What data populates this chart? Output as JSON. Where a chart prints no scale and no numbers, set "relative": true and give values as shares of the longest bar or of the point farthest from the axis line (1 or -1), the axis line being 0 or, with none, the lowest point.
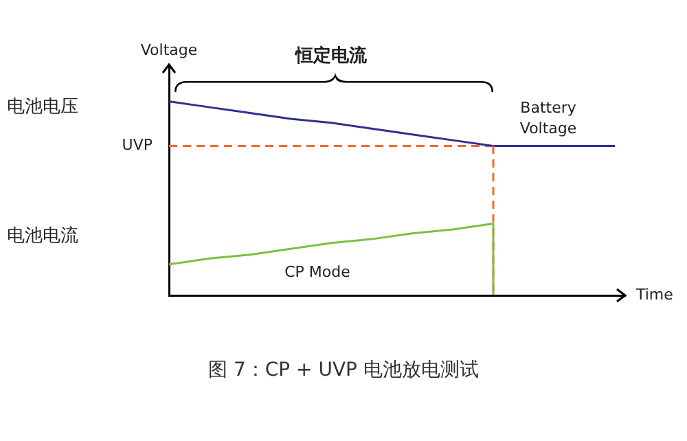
{
  "chart_data": {
    "type": "line",
    "title": "图 7：CP + UVP 电池放电测试",
    "xlabel": "Time",
    "ylabel": "Voltage",
    "relative": true,
    "categories": [
      null,
      null,
      null,
      null,
      null,
      null,
      null,
      null,
      null,
      null,
      null,
      null
    ],
    "series": [
      {
        "name": "Battery Voltage",
        "color": "#2e3192",
        "values": [
          1,
          0.97,
          0.94,
          0.91,
          0.89,
          0.86,
          0.83,
          0.8,
          0.77,
          0.77,
          0.77,
          0.77
        ]
      },
      {
        "name": "UVP",
        "color": "#f7692f",
        "line_style": "dashed",
        "values": [
          0.77,
          0.77,
          0.77,
          0.77,
          0.77,
          0.77,
          0.77,
          0.77,
          0.77,
          null,
          null,
          null
        ]
      },
      {
        "name": "CP Mode",
        "color": "#79c142",
        "values": [
          0.16,
          0.19,
          0.21,
          0.24,
          0.27,
          0.29,
          0.32,
          0.34,
          0.37,
          null,
          null,
          null
        ]
      }
    ],
    "annotations": [
      "电池电压",
      "电池电流",
      "恒定电流"
    ]
  }
}
